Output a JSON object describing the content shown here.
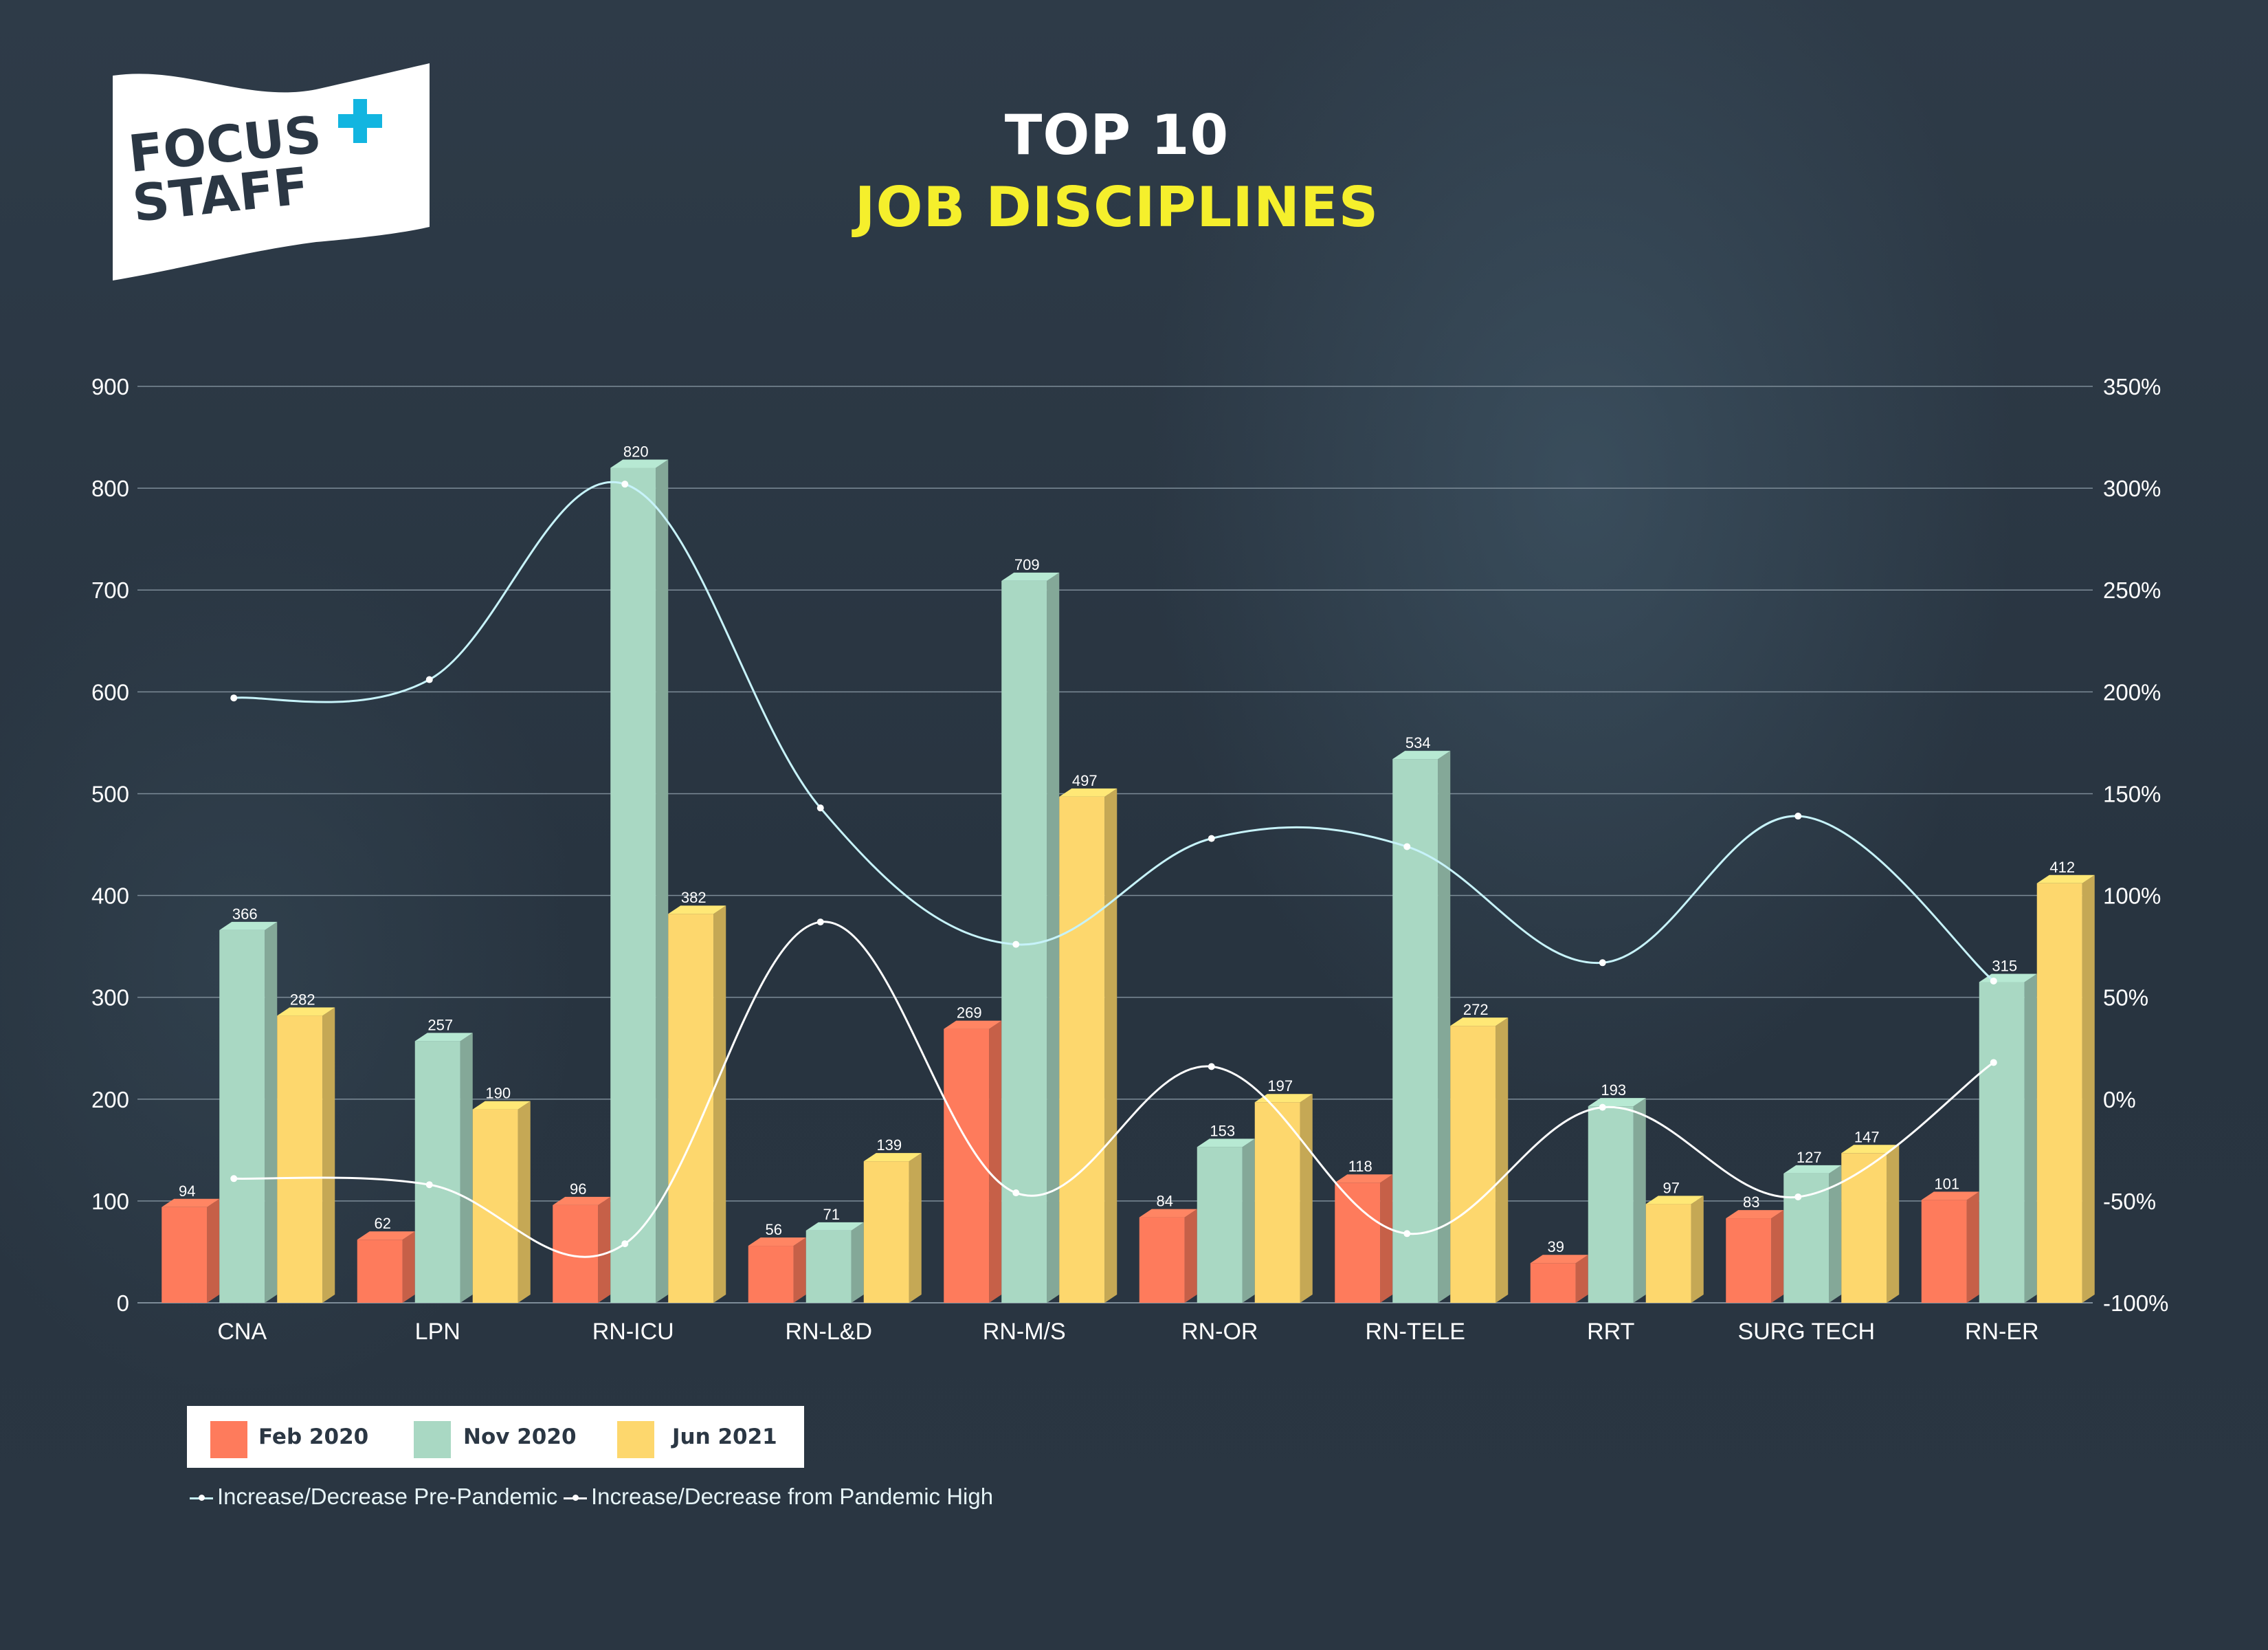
{
  "header": {
    "title_line1": "TOP 10",
    "title_line2": "JOB DISCIPLINES"
  },
  "logo": {
    "line1": "FOCUS",
    "line2": "STAFF",
    "plus_color": "#12b5e0",
    "text_color": "#2b3744"
  },
  "colors": {
    "feb2020": "#fe7b5c",
    "nov2020": "#a9d8c3",
    "jun2021": "#fdd76d",
    "pre_pandemic_line": "#c7f3fa",
    "pandemic_high_line": "#ffffff",
    "grid": "#7d8c98",
    "axis_text": "#ffffff"
  },
  "legend": {
    "bars": [
      {
        "label": "Feb 2020",
        "color": "#fe7b5c"
      },
      {
        "label": "Nov 2020",
        "color": "#a9d8c3"
      },
      {
        "label": "Jun 2021",
        "color": "#fdd76d"
      }
    ],
    "lines": [
      {
        "label": "Increase/Decrease Pre-Pandemic",
        "color": "#c7f3fa"
      },
      {
        "label": "Increase/Decrease from Pandemic High",
        "color": "#ffffff"
      }
    ]
  },
  "chart_data": {
    "type": "bar",
    "title": "TOP 10 JOB DISCIPLINES",
    "categories": [
      "CNA",
      "LPN",
      "RN-ICU",
      "RN-L&D",
      "RN-M/S",
      "RN-OR",
      "RN-TELE",
      "RRT",
      "SURG TECH",
      "RN-ER"
    ],
    "series": [
      {
        "name": "Feb 2020",
        "values": [
          94,
          62,
          96,
          56,
          269,
          84,
          118,
          39,
          83,
          101
        ]
      },
      {
        "name": "Nov 2020",
        "values": [
          366,
          257,
          820,
          71,
          709,
          153,
          534,
          193,
          127,
          315
        ]
      },
      {
        "name": "Jun 2021",
        "values": [
          282,
          190,
          382,
          139,
          497,
          197,
          272,
          97,
          147,
          412
        ]
      }
    ],
    "line_series": [
      {
        "name": "Increase/Decrease Pre-Pandemic",
        "axis": "right",
        "values": [
          197,
          206,
          302,
          143,
          76,
          128,
          124,
          67,
          139,
          58
        ]
      },
      {
        "name": "Increase/Decrease from Pandemic High",
        "axis": "right",
        "values": [
          -39,
          -42,
          -71,
          87,
          -46,
          16,
          -66,
          -4,
          -48,
          18
        ]
      }
    ],
    "y_left": {
      "min": 0,
      "max": 900,
      "step": 100,
      "ticks": [
        "0",
        "100",
        "200",
        "300",
        "400",
        "500",
        "600",
        "700",
        "800",
        "900"
      ]
    },
    "y_right": {
      "min": -100,
      "max": 350,
      "step": 50,
      "ticks": [
        "-100%",
        "-50%",
        "0%",
        "50%",
        "100%",
        "150%",
        "200%",
        "250%",
        "300%",
        "350%"
      ]
    },
    "grid": true,
    "legend_position": "bottom-left"
  }
}
